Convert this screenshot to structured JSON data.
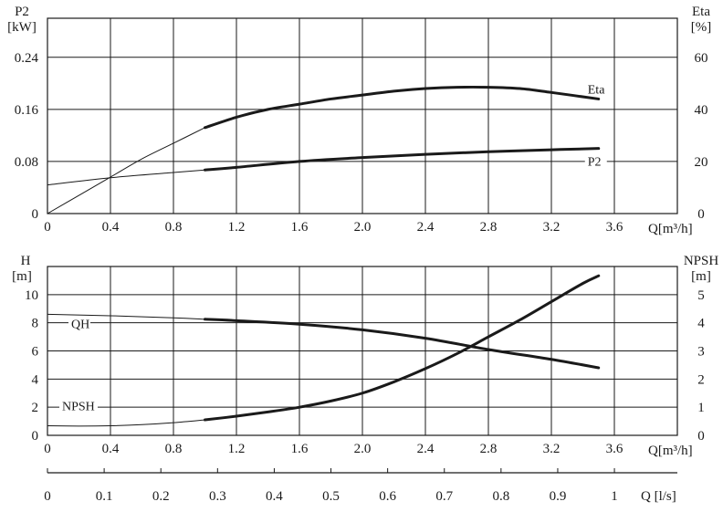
{
  "colors": {
    "ink": "#1a1a1a",
    "grid": "#1a1a1a",
    "background": "#ffffff"
  },
  "chart_data": [
    {
      "type": "line",
      "x_axis": {
        "label": "Q[m³/h]",
        "range": [
          0,
          4.0
        ],
        "ticks": [
          0,
          0.4,
          0.8,
          1.2,
          1.6,
          2.0,
          2.4,
          2.8,
          3.2,
          3.6
        ],
        "tick_labels": [
          "0",
          "0.4",
          "0.8",
          "1.2",
          "1.6",
          "2.0",
          "2.4",
          "2.8",
          "3.2",
          "3.6"
        ]
      },
      "y_left": {
        "label_lines": [
          "P2",
          "[kW]"
        ],
        "range": [
          0,
          0.3
        ],
        "ticks": [
          0,
          0.08,
          0.16,
          0.24
        ],
        "tick_labels": [
          "0",
          "0.08",
          "0.16",
          "0.24"
        ]
      },
      "y_right": {
        "label_lines": [
          "Eta",
          "[%]"
        ],
        "range": [
          0,
          75
        ],
        "ticks": [
          0,
          20,
          40,
          60
        ],
        "tick_labels": [
          "0",
          "20",
          "40",
          "60"
        ]
      },
      "grid": true,
      "series": [
        {
          "name": "Eta",
          "axis": "right",
          "x": [
            0,
            0.2,
            0.4,
            0.6,
            0.8,
            1.0,
            1.2,
            1.4,
            1.6,
            1.8,
            2.0,
            2.2,
            2.4,
            2.6,
            2.8,
            3.0,
            3.2,
            3.5
          ],
          "y": [
            0,
            7,
            14,
            21,
            27,
            33,
            37,
            40,
            42,
            44,
            45.5,
            47,
            48,
            48.5,
            48.5,
            48,
            46.5,
            44
          ],
          "bold_from": 1.0
        },
        {
          "name": "P2",
          "axis": "left",
          "x": [
            0,
            0.4,
            0.8,
            1.0,
            1.2,
            1.6,
            2.0,
            2.4,
            2.8,
            3.2,
            3.5
          ],
          "y": [
            0.044,
            0.055,
            0.063,
            0.067,
            0.071,
            0.08,
            0.086,
            0.091,
            0.095,
            0.098,
            0.1
          ],
          "bold_from": 1.0
        }
      ]
    },
    {
      "type": "line",
      "x_axis": {
        "label": "Q[m³/h]",
        "range": [
          0,
          4.0
        ],
        "ticks": [
          0,
          0.4,
          0.8,
          1.2,
          1.6,
          2.0,
          2.4,
          2.8,
          3.2,
          3.6
        ],
        "tick_labels": [
          "0",
          "0.4",
          "0.8",
          "1.2",
          "1.6",
          "2.0",
          "2.4",
          "2.8",
          "3.2",
          "3.6"
        ]
      },
      "x_axis_secondary": {
        "label": "Q [l/s]",
        "range": [
          0,
          1.111
        ],
        "ticks": [
          0,
          0.1,
          0.2,
          0.3,
          0.4,
          0.5,
          0.6,
          0.7,
          0.8,
          0.9,
          1.0
        ],
        "tick_labels": [
          "0",
          "0.1",
          "0.2",
          "0.3",
          "0.4",
          "0.5",
          "0.6",
          "0.7",
          "0.8",
          "0.9",
          "1"
        ]
      },
      "y_left": {
        "label_lines": [
          "H",
          "[m]"
        ],
        "range": [
          0,
          12
        ],
        "ticks": [
          0,
          2,
          4,
          6,
          8,
          10
        ],
        "tick_labels": [
          "0",
          "2",
          "4",
          "6",
          "8",
          "10"
        ]
      },
      "y_right": {
        "label_lines": [
          "NPSH",
          "[m]"
        ],
        "range": [
          0,
          6
        ],
        "ticks": [
          0,
          1,
          2,
          3,
          4,
          5
        ],
        "tick_labels": [
          "0",
          "1",
          "2",
          "3",
          "4",
          "5"
        ]
      },
      "grid": true,
      "series": [
        {
          "name": "QH",
          "axis": "left",
          "x": [
            0,
            0.4,
            0.8,
            1.0,
            1.2,
            1.6,
            2.0,
            2.4,
            2.8,
            3.2,
            3.5
          ],
          "y": [
            8.6,
            8.5,
            8.35,
            8.25,
            8.15,
            7.9,
            7.5,
            6.9,
            6.1,
            5.4,
            4.8
          ],
          "bold_from": 1.0
        },
        {
          "name": "NPSH",
          "axis": "right",
          "x": [
            0,
            0.2,
            0.4,
            0.6,
            0.8,
            1.0,
            1.2,
            1.4,
            1.6,
            1.8,
            2.0,
            2.2,
            2.4,
            2.6,
            2.8,
            3.0,
            3.2,
            3.4,
            3.5
          ],
          "y": [
            0.34,
            0.33,
            0.34,
            0.38,
            0.45,
            0.55,
            0.68,
            0.83,
            1.0,
            1.22,
            1.5,
            1.9,
            2.37,
            2.9,
            3.5,
            4.1,
            4.75,
            5.4,
            5.67
          ],
          "bold_from": 1.0
        }
      ]
    }
  ]
}
